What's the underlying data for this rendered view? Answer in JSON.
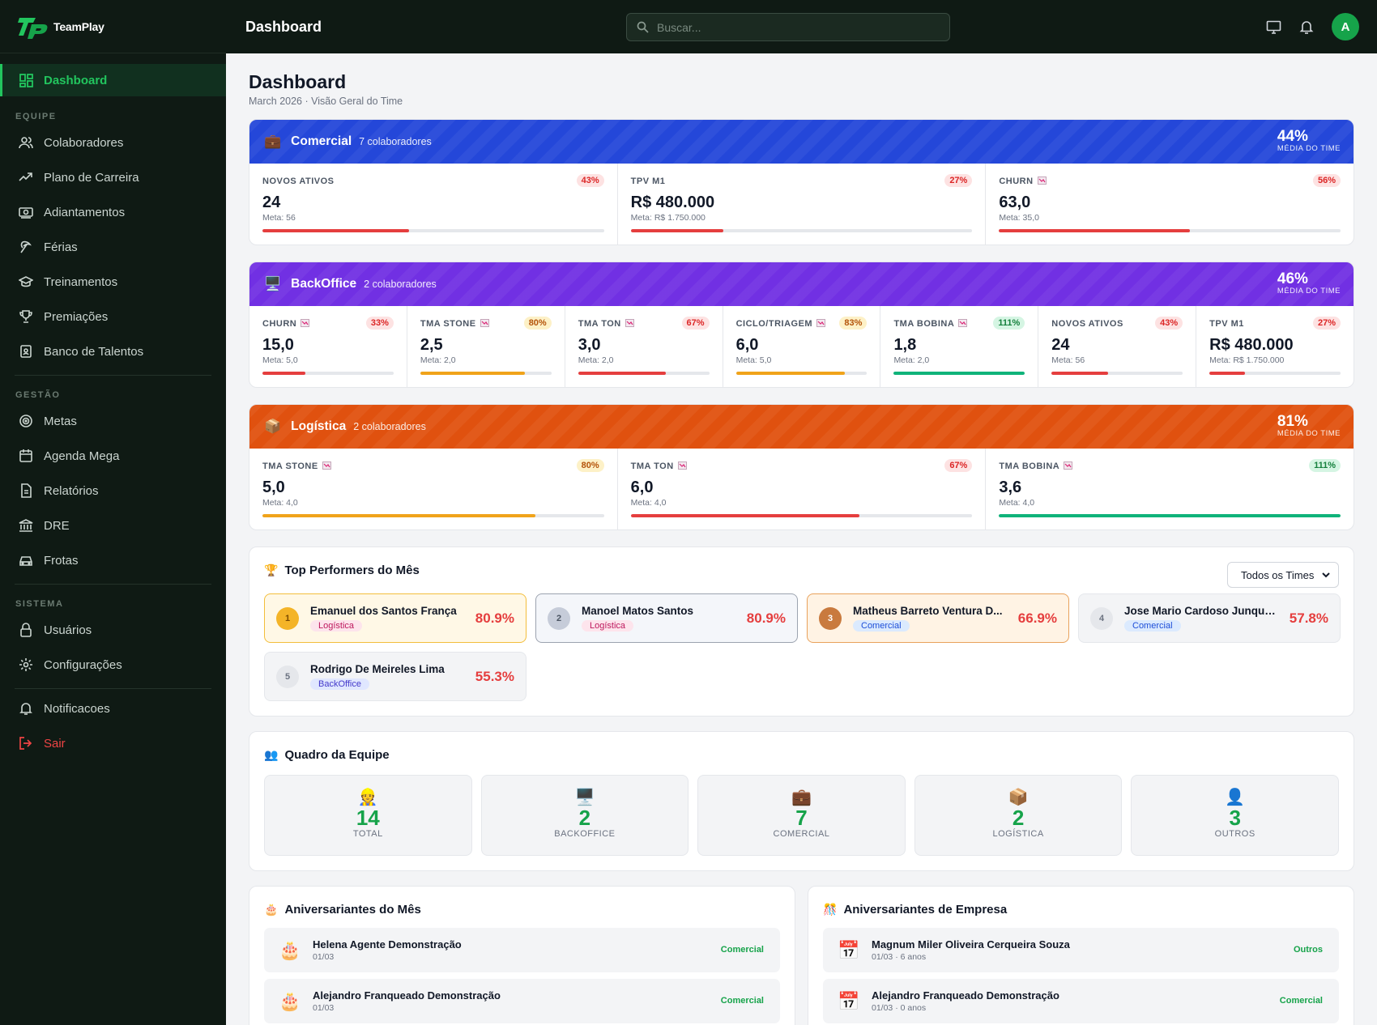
{
  "brand": {
    "name": "TeamPlay"
  },
  "topbar": {
    "title": "Dashboard",
    "search_placeholder": "Buscar...",
    "avatar_initial": "A"
  },
  "sidebar": {
    "active": {
      "label": "Dashboard",
      "icon": "grid-icon"
    },
    "sections": [
      {
        "title": "EQUIPE",
        "items": [
          {
            "label": "Colaboradores",
            "icon": "users-icon"
          },
          {
            "label": "Plano de Carreira",
            "icon": "trend-icon"
          },
          {
            "label": "Adiantamentos",
            "icon": "money-icon"
          },
          {
            "label": "Férias",
            "icon": "palm-icon"
          },
          {
            "label": "Treinamentos",
            "icon": "graduation-icon"
          },
          {
            "label": "Premiações",
            "icon": "trophy-icon"
          },
          {
            "label": "Banco de Talentos",
            "icon": "badge-icon"
          }
        ]
      },
      {
        "title": "GESTÃO",
        "items": [
          {
            "label": "Metas",
            "icon": "target-icon"
          },
          {
            "label": "Agenda Mega",
            "icon": "calendar-icon"
          },
          {
            "label": "Relatórios",
            "icon": "report-icon"
          },
          {
            "label": "DRE",
            "icon": "bank-icon"
          },
          {
            "label": "Frotas",
            "icon": "car-icon"
          }
        ]
      },
      {
        "title": "SISTEMA",
        "items": [
          {
            "label": "Usuários",
            "icon": "lock-icon"
          },
          {
            "label": "Configurações",
            "icon": "gear-icon"
          }
        ]
      }
    ],
    "notifications": "Notificacoes",
    "logout": "Sair"
  },
  "page": {
    "title": "Dashboard",
    "subtitle": "March 2026 · Visão Geral do Time"
  },
  "teams": [
    {
      "name": "Comercial",
      "count": "7 colaboradores",
      "avg": "44%",
      "avg_label": "MÉDIA DO TIME",
      "color": "#2447d9",
      "emoji": "💼",
      "metrics": [
        {
          "label": "NOVOS ATIVOS",
          "value": "24",
          "meta": "Meta: 56",
          "badge": "43%",
          "level": 0.43,
          "status": "red"
        },
        {
          "label": "TPV M1",
          "value": "R$ 480.000",
          "meta": "Meta: R$ 1.750.000",
          "badge": "27%",
          "level": 0.27,
          "status": "red"
        },
        {
          "label": "CHURN",
          "value": "63,0",
          "meta": "Meta: 35,0",
          "badge": "56%",
          "level": 0.56,
          "status": "red",
          "down": true
        }
      ]
    },
    {
      "name": "BackOffice",
      "count": "2 colaboradores",
      "avg": "46%",
      "avg_label": "MÉDIA DO TIME",
      "color": "#7130e3",
      "emoji": "🖥️",
      "metrics": [
        {
          "label": "CHURN",
          "value": "15,0",
          "meta": "Meta: 5,0",
          "badge": "33%",
          "level": 0.33,
          "status": "red",
          "down": true
        },
        {
          "label": "TMA STONE",
          "value": "2,5",
          "meta": "Meta: 2,0",
          "badge": "80%",
          "level": 0.8,
          "status": "yellow",
          "down": true
        },
        {
          "label": "TMA TON",
          "value": "3,0",
          "meta": "Meta: 2,0",
          "badge": "67%",
          "level": 0.67,
          "status": "red",
          "down": true
        },
        {
          "label": "CICLO/TRIAGEM",
          "value": "6,0",
          "meta": "Meta: 5,0",
          "badge": "83%",
          "level": 0.83,
          "status": "yellow",
          "down": true
        },
        {
          "label": "TMA BOBINA",
          "value": "1,8",
          "meta": "Meta: 2,0",
          "badge": "111%",
          "level": 1.0,
          "status": "green",
          "down": true
        },
        {
          "label": "NOVOS ATIVOS",
          "value": "24",
          "meta": "Meta: 56",
          "badge": "43%",
          "level": 0.43,
          "status": "red"
        },
        {
          "label": "TPV M1",
          "value": "R$ 480.000",
          "meta": "Meta: R$ 1.750.000",
          "badge": "27%",
          "level": 0.27,
          "status": "red"
        }
      ]
    },
    {
      "name": "Logística",
      "count": "2 colaboradores",
      "avg": "81%",
      "avg_label": "MÉDIA DO TIME",
      "color": "#e0510f",
      "emoji": "📦",
      "metrics": [
        {
          "label": "TMA STONE",
          "value": "5,0",
          "meta": "Meta: 4,0",
          "badge": "80%",
          "level": 0.8,
          "status": "yellow",
          "down": true
        },
        {
          "label": "TMA TON",
          "value": "6,0",
          "meta": "Meta: 4,0",
          "badge": "67%",
          "level": 0.67,
          "status": "red",
          "down": true
        },
        {
          "label": "TMA BOBINA",
          "value": "3,6",
          "meta": "Meta: 4,0",
          "badge": "111%",
          "level": 1.0,
          "status": "green",
          "down": true
        }
      ]
    }
  ],
  "top_performers": {
    "title": "Top Performers do Mês",
    "filter": "Todos os Times",
    "items": [
      {
        "rank": "1",
        "name": "Emanuel dos Santos França",
        "team": "Logística",
        "pct": "80.9%",
        "style": "gold",
        "tag": "log"
      },
      {
        "rank": "2",
        "name": "Manoel Matos Santos",
        "team": "Logística",
        "pct": "80.9%",
        "style": "silver",
        "tag": "log"
      },
      {
        "rank": "3",
        "name": "Matheus Barreto Ventura D...",
        "team": "Comercial",
        "pct": "66.9%",
        "style": "bronze",
        "tag": "com"
      },
      {
        "rank": "4",
        "name": "Jose Mario Cardoso Junqueira",
        "team": "Comercial",
        "pct": "57.8%",
        "style": "plain",
        "tag": "com"
      },
      {
        "rank": "5",
        "name": "Rodrigo De Meireles Lima",
        "team": "BackOffice",
        "pct": "55.3%",
        "style": "plain",
        "tag": "bo"
      }
    ]
  },
  "quadro": {
    "title": "Quadro da Equipe",
    "items": [
      {
        "emoji": "👷",
        "num": "14",
        "label": "TOTAL"
      },
      {
        "emoji": "🖥️",
        "num": "2",
        "label": "BACKOFFICE"
      },
      {
        "emoji": "💼",
        "num": "7",
        "label": "COMERCIAL"
      },
      {
        "emoji": "📦",
        "num": "2",
        "label": "LOGÍSTICA"
      },
      {
        "emoji": "👤",
        "num": "3",
        "label": "OUTROS"
      }
    ]
  },
  "birthdays": {
    "title": "Aniversariantes do Mês",
    "items": [
      {
        "name": "Helena Agente Demonstração",
        "date": "01/03",
        "team": "Comercial"
      },
      {
        "name": "Alejandro Franqueado Demonstração",
        "date": "01/03",
        "team": "Comercial"
      }
    ]
  },
  "company_anniversaries": {
    "title": "Aniversariantes de Empresa",
    "items": [
      {
        "name": "Magnum Miler Oliveira Cerqueira Souza",
        "date": "01/03 · 6 anos",
        "team": "Outros"
      },
      {
        "name": "Alejandro Franqueado Demonstração",
        "date": "01/03 · 0 anos",
        "team": "Comercial"
      }
    ]
  }
}
